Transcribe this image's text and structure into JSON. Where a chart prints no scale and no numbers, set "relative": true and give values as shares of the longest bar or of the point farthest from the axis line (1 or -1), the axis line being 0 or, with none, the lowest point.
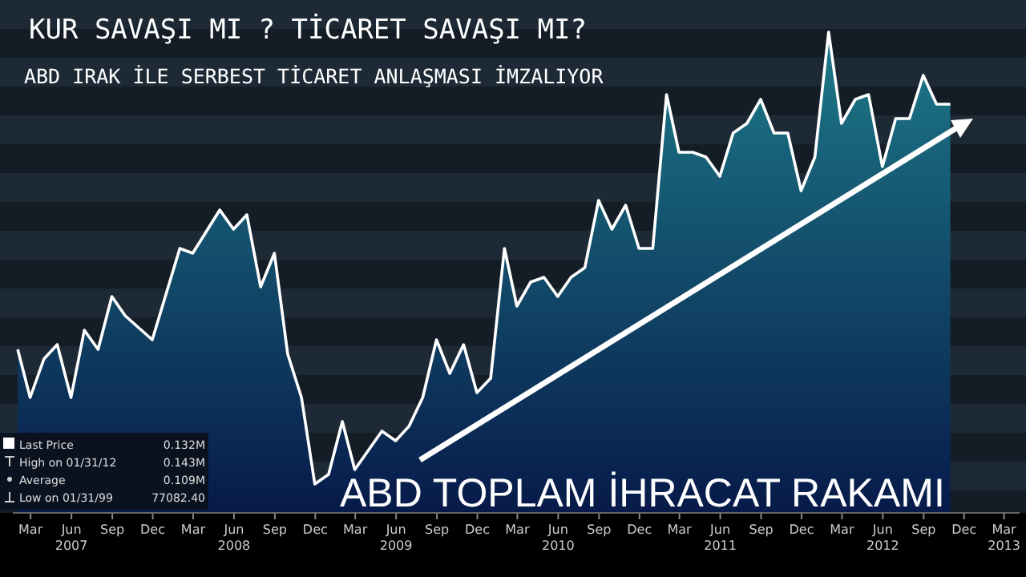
{
  "chart_data": {
    "type": "area",
    "relative": true,
    "title": "KUR SAVAŞI MI ? TİCARET SAVAŞI MI?",
    "subtitle": "ABD IRAK İLE SERBEST TİCARET ANLAŞMASI İMZALIYOR",
    "annotations": [
      "ABD TOPLAM İHRACAT RAKAMI",
      "0.132M",
      "High on 01/31/12",
      "0.143M",
      "Average",
      "0.109M",
      "Low on 01/31/99",
      "77082.40"
    ],
    "legend": "bottom left",
    "xlim": [
      "2007-01-20",
      "2013-04-05"
    ],
    "xticks": [
      {
        "value": "2007-03-01",
        "label": "Mar"
      },
      {
        "value": "2007-06-01",
        "label": "Jun 2007"
      },
      {
        "value": "2007-09-01",
        "label": "Sep"
      },
      {
        "value": "2007-12-01",
        "label": "Dec"
      },
      {
        "value": "2008-03-01",
        "label": "Mar"
      },
      {
        "value": "2008-06-01",
        "label": "Jun 2008"
      },
      {
        "value": "2008-09-01",
        "label": "Sep"
      },
      {
        "value": "2008-12-01",
        "label": "Dec"
      },
      {
        "value": "2009-03-01",
        "label": "Mar"
      },
      {
        "value": "2009-06-01",
        "label": "Jun 2009"
      },
      {
        "value": "2009-09-01",
        "label": "Sep"
      },
      {
        "value": "2009-12-01",
        "label": "Dec"
      },
      {
        "value": "2010-03-01",
        "label": "Mar"
      },
      {
        "value": "2010-06-01",
        "label": "Jun 2010"
      },
      {
        "value": "2010-09-01",
        "label": "Sep"
      },
      {
        "value": "2010-12-01",
        "label": "Dec"
      },
      {
        "value": "2011-03-01",
        "label": "Mar"
      },
      {
        "value": "2011-06-01",
        "label": "Jun 2011"
      },
      {
        "value": "2011-09-01",
        "label": "Sep"
      },
      {
        "value": "2011-12-01",
        "label": "Dec"
      },
      {
        "value": "2012-03-01",
        "label": "Mar"
      },
      {
        "value": "2012-06-01",
        "label": "Jun 2012"
      },
      {
        "value": "2012-09-01",
        "label": "Sep"
      },
      {
        "value": "2012-12-01",
        "label": "Dec"
      },
      {
        "value": "2013-03-01",
        "label": "Mar 2013"
      }
    ],
    "series": [
      {
        "name": "Last Price",
        "color": "#ffffff",
        "x": [
          "2007-01-31",
          "2007-02-28",
          "2007-03-31",
          "2007-04-30",
          "2007-05-31",
          "2007-06-30",
          "2007-07-31",
          "2007-08-31",
          "2007-09-30",
          "2007-11-30",
          "2008-01-31",
          "2008-02-29",
          "2008-04-30",
          "2008-05-31",
          "2008-06-30",
          "2008-07-31",
          "2008-08-31",
          "2008-09-30",
          "2008-10-31",
          "2008-11-30",
          "2008-12-31",
          "2009-01-31",
          "2009-02-28",
          "2009-04-30",
          "2009-05-31",
          "2009-06-30",
          "2009-07-31",
          "2009-08-31",
          "2009-09-30",
          "2009-10-31",
          "2009-11-30",
          "2009-12-31",
          "2010-01-31",
          "2010-02-28",
          "2010-03-31",
          "2010-04-30",
          "2010-05-31",
          "2010-06-30",
          "2010-07-31",
          "2010-08-31",
          "2010-09-30",
          "2010-10-31",
          "2010-11-30",
          "2010-12-31",
          "2011-01-31",
          "2011-02-28",
          "2011-03-31",
          "2011-04-30",
          "2011-05-31",
          "2011-06-30",
          "2011-07-31",
          "2011-08-31",
          "2011-09-30",
          "2011-10-31",
          "2011-11-30",
          "2011-12-31",
          "2012-01-31",
          "2012-02-29",
          "2012-03-31",
          "2012-04-30",
          "2012-05-31",
          "2012-06-30",
          "2012-07-31",
          "2012-08-31",
          "2012-09-30",
          "2012-10-31"
        ],
        "values": [
          0.34,
          0.24,
          0.32,
          0.35,
          0.24,
          0.38,
          0.34,
          0.45,
          0.41,
          0.36,
          0.55,
          0.54,
          0.63,
          0.59,
          0.62,
          0.47,
          0.54,
          0.33,
          0.24,
          0.06,
          0.08,
          0.19,
          0.09,
          0.17,
          0.15,
          0.18,
          0.24,
          0.36,
          0.29,
          0.35,
          0.25,
          0.28,
          0.55,
          0.43,
          0.48,
          0.49,
          0.45,
          0.49,
          0.51,
          0.65,
          0.59,
          0.64,
          0.55,
          0.55,
          0.87,
          0.75,
          0.75,
          0.74,
          0.7,
          0.79,
          0.81,
          0.86,
          0.79,
          0.79,
          0.67,
          0.74,
          1,
          0.81,
          0.86,
          0.87,
          0.72,
          0.82,
          0.82,
          0.91,
          0.85,
          0.85
        ]
      }
    ]
  }
}
